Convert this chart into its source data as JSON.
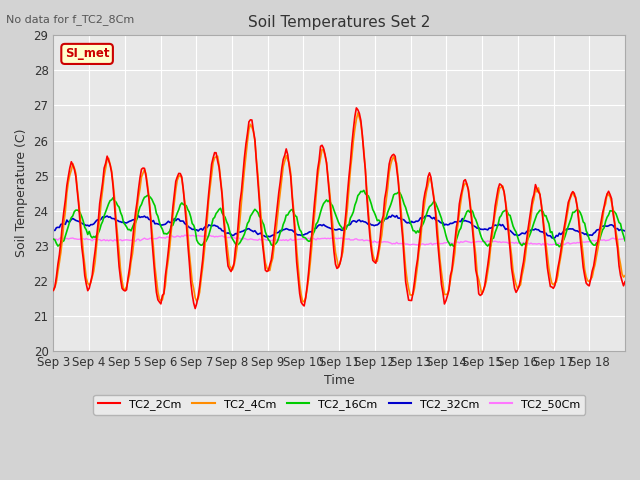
{
  "title": "Soil Temperatures Set 2",
  "subtitle": "No data for f_TC2_8Cm",
  "xlabel": "Time",
  "ylabel": "Soil Temperature (C)",
  "ylim": [
    20.0,
    29.0
  ],
  "yticks": [
    20.0,
    21.0,
    22.0,
    23.0,
    24.0,
    25.0,
    26.0,
    27.0,
    28.0,
    29.0
  ],
  "xtick_labels": [
    "Sep 3",
    "Sep 4",
    "Sep 5",
    "Sep 6",
    "Sep 7",
    "Sep 8",
    "Sep 9",
    "Sep 10",
    "Sep 11",
    "Sep 12",
    "Sep 13",
    "Sep 14",
    "Sep 15",
    "Sep 16",
    "Sep 17",
    "Sep 18"
  ],
  "series": {
    "TC2_2Cm": {
      "color": "#FF0000",
      "lw": 1.2
    },
    "TC2_4Cm": {
      "color": "#FF8C00",
      "lw": 1.2
    },
    "TC2_16Cm": {
      "color": "#00CC00",
      "lw": 1.2
    },
    "TC2_32Cm": {
      "color": "#0000CC",
      "lw": 1.2
    },
    "TC2_50Cm": {
      "color": "#FF77FF",
      "lw": 1.0
    }
  },
  "plot_bg_color": "#E8E8E8",
  "fig_bg_color": "#D3D3D3",
  "grid_color": "#FFFFFF",
  "annotation_text": "SI_met",
  "annotation_color": "#CC0000",
  "annotation_bg": "#FFFFCC",
  "annotation_edge": "#CC0000"
}
